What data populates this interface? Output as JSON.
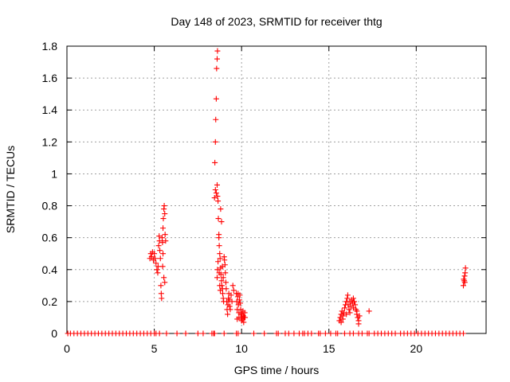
{
  "chart_data": {
    "type": "scatter",
    "title": "Day 148 of 2023, SRMTID for receiver thtg",
    "xlabel": "GPS time / hours",
    "ylabel": "SRMTID / TECUs",
    "xlim": [
      0,
      24
    ],
    "ylim": [
      0,
      1.8
    ],
    "xticks": [
      0,
      5,
      10,
      15,
      20
    ],
    "xtick_labels": [
      "0",
      "5",
      "10",
      "15",
      "20"
    ],
    "yticks": [
      0,
      0.2,
      0.4,
      0.6,
      0.8,
      1.0,
      1.2,
      1.4,
      1.6,
      1.8
    ],
    "ytick_labels": [
      "0",
      "0.2",
      "0.4",
      "0.6",
      "0.8",
      "1",
      "1.2",
      "1.4",
      "1.6",
      "1.8"
    ],
    "grid": true,
    "marker": "+",
    "color": "#ff0000",
    "series": [
      {
        "name": "SRMTID",
        "points": [
          [
            0.05,
            0
          ],
          [
            0.2,
            0
          ],
          [
            0.4,
            0
          ],
          [
            0.6,
            0
          ],
          [
            0.8,
            0
          ],
          [
            1.0,
            0
          ],
          [
            1.2,
            0
          ],
          [
            1.4,
            0
          ],
          [
            1.6,
            0
          ],
          [
            1.8,
            0
          ],
          [
            2.0,
            0
          ],
          [
            2.2,
            0
          ],
          [
            2.4,
            0
          ],
          [
            2.6,
            0
          ],
          [
            2.8,
            0
          ],
          [
            3.0,
            0
          ],
          [
            3.2,
            0
          ],
          [
            3.4,
            0
          ],
          [
            3.6,
            0
          ],
          [
            3.8,
            0
          ],
          [
            4.0,
            0
          ],
          [
            4.2,
            0
          ],
          [
            4.4,
            0
          ],
          [
            4.6,
            0
          ],
          [
            4.8,
            0
          ],
          [
            5.0,
            0
          ],
          [
            5.1,
            0
          ],
          [
            5.3,
            0
          ],
          [
            5.7,
            0
          ],
          [
            6.3,
            0
          ],
          [
            6.8,
            0
          ],
          [
            7.5,
            0
          ],
          [
            7.8,
            0
          ],
          [
            8.3,
            0
          ],
          [
            8.4,
            0
          ],
          [
            8.45,
            0
          ],
          [
            9.0,
            0
          ],
          [
            9.7,
            0
          ],
          [
            9.8,
            0
          ],
          [
            10.7,
            0
          ],
          [
            11.3,
            0
          ],
          [
            12.0,
            0
          ],
          [
            12.1,
            0
          ],
          [
            12.5,
            0
          ],
          [
            12.7,
            0
          ],
          [
            13.0,
            0
          ],
          [
            13.3,
            0
          ],
          [
            13.5,
            0
          ],
          [
            13.6,
            0
          ],
          [
            13.8,
            0
          ],
          [
            14.0,
            0
          ],
          [
            14.4,
            0
          ],
          [
            14.5,
            0
          ],
          [
            14.8,
            0
          ],
          [
            15.1,
            0
          ],
          [
            15.4,
            0
          ],
          [
            15.5,
            0
          ],
          [
            15.9,
            0
          ],
          [
            16.2,
            0
          ],
          [
            16.4,
            0
          ],
          [
            16.7,
            0
          ],
          [
            16.9,
            0
          ],
          [
            17.2,
            0
          ],
          [
            17.3,
            0
          ],
          [
            17.6,
            0
          ],
          [
            17.8,
            0
          ],
          [
            18.0,
            0
          ],
          [
            18.2,
            0
          ],
          [
            18.4,
            0
          ],
          [
            18.6,
            0
          ],
          [
            18.8,
            0
          ],
          [
            19.1,
            0
          ],
          [
            19.3,
            0
          ],
          [
            19.5,
            0
          ],
          [
            19.7,
            0
          ],
          [
            19.9,
            0
          ],
          [
            20.1,
            0
          ],
          [
            20.3,
            0
          ],
          [
            20.5,
            0
          ],
          [
            20.7,
            0
          ],
          [
            20.9,
            0
          ],
          [
            21.1,
            0
          ],
          [
            21.3,
            0
          ],
          [
            21.5,
            0
          ],
          [
            21.7,
            0
          ],
          [
            21.9,
            0
          ],
          [
            22.1,
            0
          ],
          [
            22.3,
            0
          ],
          [
            22.5,
            0
          ],
          [
            22.7,
            0
          ],
          [
            4.75,
            0.47
          ],
          [
            4.8,
            0.5
          ],
          [
            4.85,
            0.48
          ],
          [
            4.9,
            0.51
          ],
          [
            4.95,
            0.46
          ],
          [
            5.0,
            0.5
          ],
          [
            5.05,
            0.47
          ],
          [
            5.1,
            0.44
          ],
          [
            5.15,
            0.4
          ],
          [
            5.2,
            0.38
          ],
          [
            5.22,
            0.42
          ],
          [
            5.25,
            0.55
          ],
          [
            5.28,
            0.61
          ],
          [
            5.3,
            0.58
          ],
          [
            5.32,
            0.52
          ],
          [
            5.35,
            0.47
          ],
          [
            5.38,
            0.3
          ],
          [
            5.4,
            0.25
          ],
          [
            5.42,
            0.22
          ],
          [
            5.45,
            0.6
          ],
          [
            5.47,
            0.57
          ],
          [
            5.5,
            0.66
          ],
          [
            5.52,
            0.72
          ],
          [
            5.55,
            0.78
          ],
          [
            5.57,
            0.8
          ],
          [
            5.6,
            0.75
          ],
          [
            5.62,
            0.62
          ],
          [
            5.65,
            0.58
          ],
          [
            5.5,
            0.5
          ],
          [
            5.55,
            0.35
          ],
          [
            5.6,
            0.32
          ],
          [
            5.48,
            0.42
          ],
          [
            8.45,
            0.85
          ],
          [
            8.47,
            1.07
          ],
          [
            8.5,
            1.2
          ],
          [
            8.52,
            1.34
          ],
          [
            8.55,
            1.47
          ],
          [
            8.57,
            1.66
          ],
          [
            8.6,
            1.72
          ],
          [
            8.62,
            1.77
          ],
          [
            8.5,
            0.9
          ],
          [
            8.55,
            0.88
          ],
          [
            8.6,
            0.93
          ],
          [
            8.62,
            0.86
          ],
          [
            8.65,
            0.83
          ],
          [
            8.67,
            0.72
          ],
          [
            8.7,
            0.6
          ],
          [
            8.72,
            0.55
          ],
          [
            8.75,
            0.5
          ],
          [
            8.77,
            0.47
          ],
          [
            8.8,
            0.41
          ],
          [
            8.82,
            0.37
          ],
          [
            8.85,
            0.33
          ],
          [
            8.87,
            0.3
          ],
          [
            8.9,
            0.28
          ],
          [
            8.92,
            0.25
          ],
          [
            8.95,
            0.22
          ],
          [
            8.97,
            0.2
          ],
          [
            8.6,
            0.35
          ],
          [
            8.62,
            0.4
          ],
          [
            8.65,
            0.45
          ],
          [
            8.7,
            0.62
          ],
          [
            8.72,
            0.38
          ],
          [
            8.75,
            0.3
          ],
          [
            8.78,
            0.27
          ],
          [
            8.8,
            0.78
          ],
          [
            8.85,
            0.7
          ],
          [
            8.9,
            0.42
          ],
          [
            8.95,
            0.35
          ],
          [
            9.0,
            0.48
          ],
          [
            9.02,
            0.46
          ],
          [
            9.05,
            0.43
          ],
          [
            9.07,
            0.38
          ],
          [
            9.1,
            0.32
          ],
          [
            9.12,
            0.28
          ],
          [
            9.15,
            0.2
          ],
          [
            9.17,
            0.15
          ],
          [
            9.2,
            0.12
          ],
          [
            9.22,
            0.18
          ],
          [
            9.25,
            0.22
          ],
          [
            9.27,
            0.25
          ],
          [
            9.3,
            0.21
          ],
          [
            9.32,
            0.17
          ],
          [
            9.35,
            0.15
          ],
          [
            9.4,
            0.24
          ],
          [
            9.45,
            0.2
          ],
          [
            9.5,
            0.3
          ],
          [
            9.55,
            0.27
          ],
          [
            9.7,
            0.25
          ],
          [
            9.72,
            0.2
          ],
          [
            9.75,
            0.15
          ],
          [
            9.78,
            0.23
          ],
          [
            9.8,
            0.25
          ],
          [
            9.82,
            0.18
          ],
          [
            9.85,
            0.13
          ],
          [
            9.88,
            0.21
          ],
          [
            9.9,
            0.24
          ],
          [
            9.92,
            0.19
          ],
          [
            9.95,
            0.15
          ],
          [
            9.97,
            0.1
          ],
          [
            10.0,
            0.08
          ],
          [
            10.02,
            0.12
          ],
          [
            10.05,
            0.09
          ],
          [
            10.08,
            0.14
          ],
          [
            10.1,
            0.11
          ],
          [
            10.12,
            0.07
          ],
          [
            10.15,
            0.1
          ],
          [
            10.18,
            0.13
          ],
          [
            10.2,
            0.1
          ],
          [
            9.75,
            0.09
          ],
          [
            9.85,
            0.1
          ],
          [
            9.95,
            0.12
          ],
          [
            15.6,
            0.08
          ],
          [
            15.65,
            0.1
          ],
          [
            15.7,
            0.12
          ],
          [
            15.75,
            0.14
          ],
          [
            15.8,
            0.11
          ],
          [
            15.85,
            0.13
          ],
          [
            15.9,
            0.16
          ],
          [
            15.95,
            0.18
          ],
          [
            16.0,
            0.2
          ],
          [
            16.05,
            0.22
          ],
          [
            16.08,
            0.24
          ],
          [
            16.1,
            0.18
          ],
          [
            16.15,
            0.15
          ],
          [
            16.2,
            0.2
          ],
          [
            16.25,
            0.17
          ],
          [
            16.3,
            0.21
          ],
          [
            16.35,
            0.19
          ],
          [
            16.4,
            0.22
          ],
          [
            16.45,
            0.2
          ],
          [
            16.5,
            0.18
          ],
          [
            16.55,
            0.15
          ],
          [
            16.6,
            0.12
          ],
          [
            16.65,
            0.1
          ],
          [
            16.7,
            0.08
          ],
          [
            16.75,
            0.11
          ],
          [
            15.7,
            0.07
          ],
          [
            15.8,
            0.09
          ],
          [
            16.0,
            0.12
          ],
          [
            16.2,
            0.13
          ],
          [
            16.4,
            0.16
          ],
          [
            16.6,
            0.14
          ],
          [
            16.7,
            0.06
          ],
          [
            17.3,
            0.14
          ],
          [
            22.7,
            0.3
          ],
          [
            22.72,
            0.34
          ],
          [
            22.75,
            0.33
          ],
          [
            22.77,
            0.36
          ],
          [
            22.8,
            0.38
          ],
          [
            22.82,
            0.41
          ],
          [
            22.78,
            0.32
          ]
        ]
      }
    ]
  }
}
